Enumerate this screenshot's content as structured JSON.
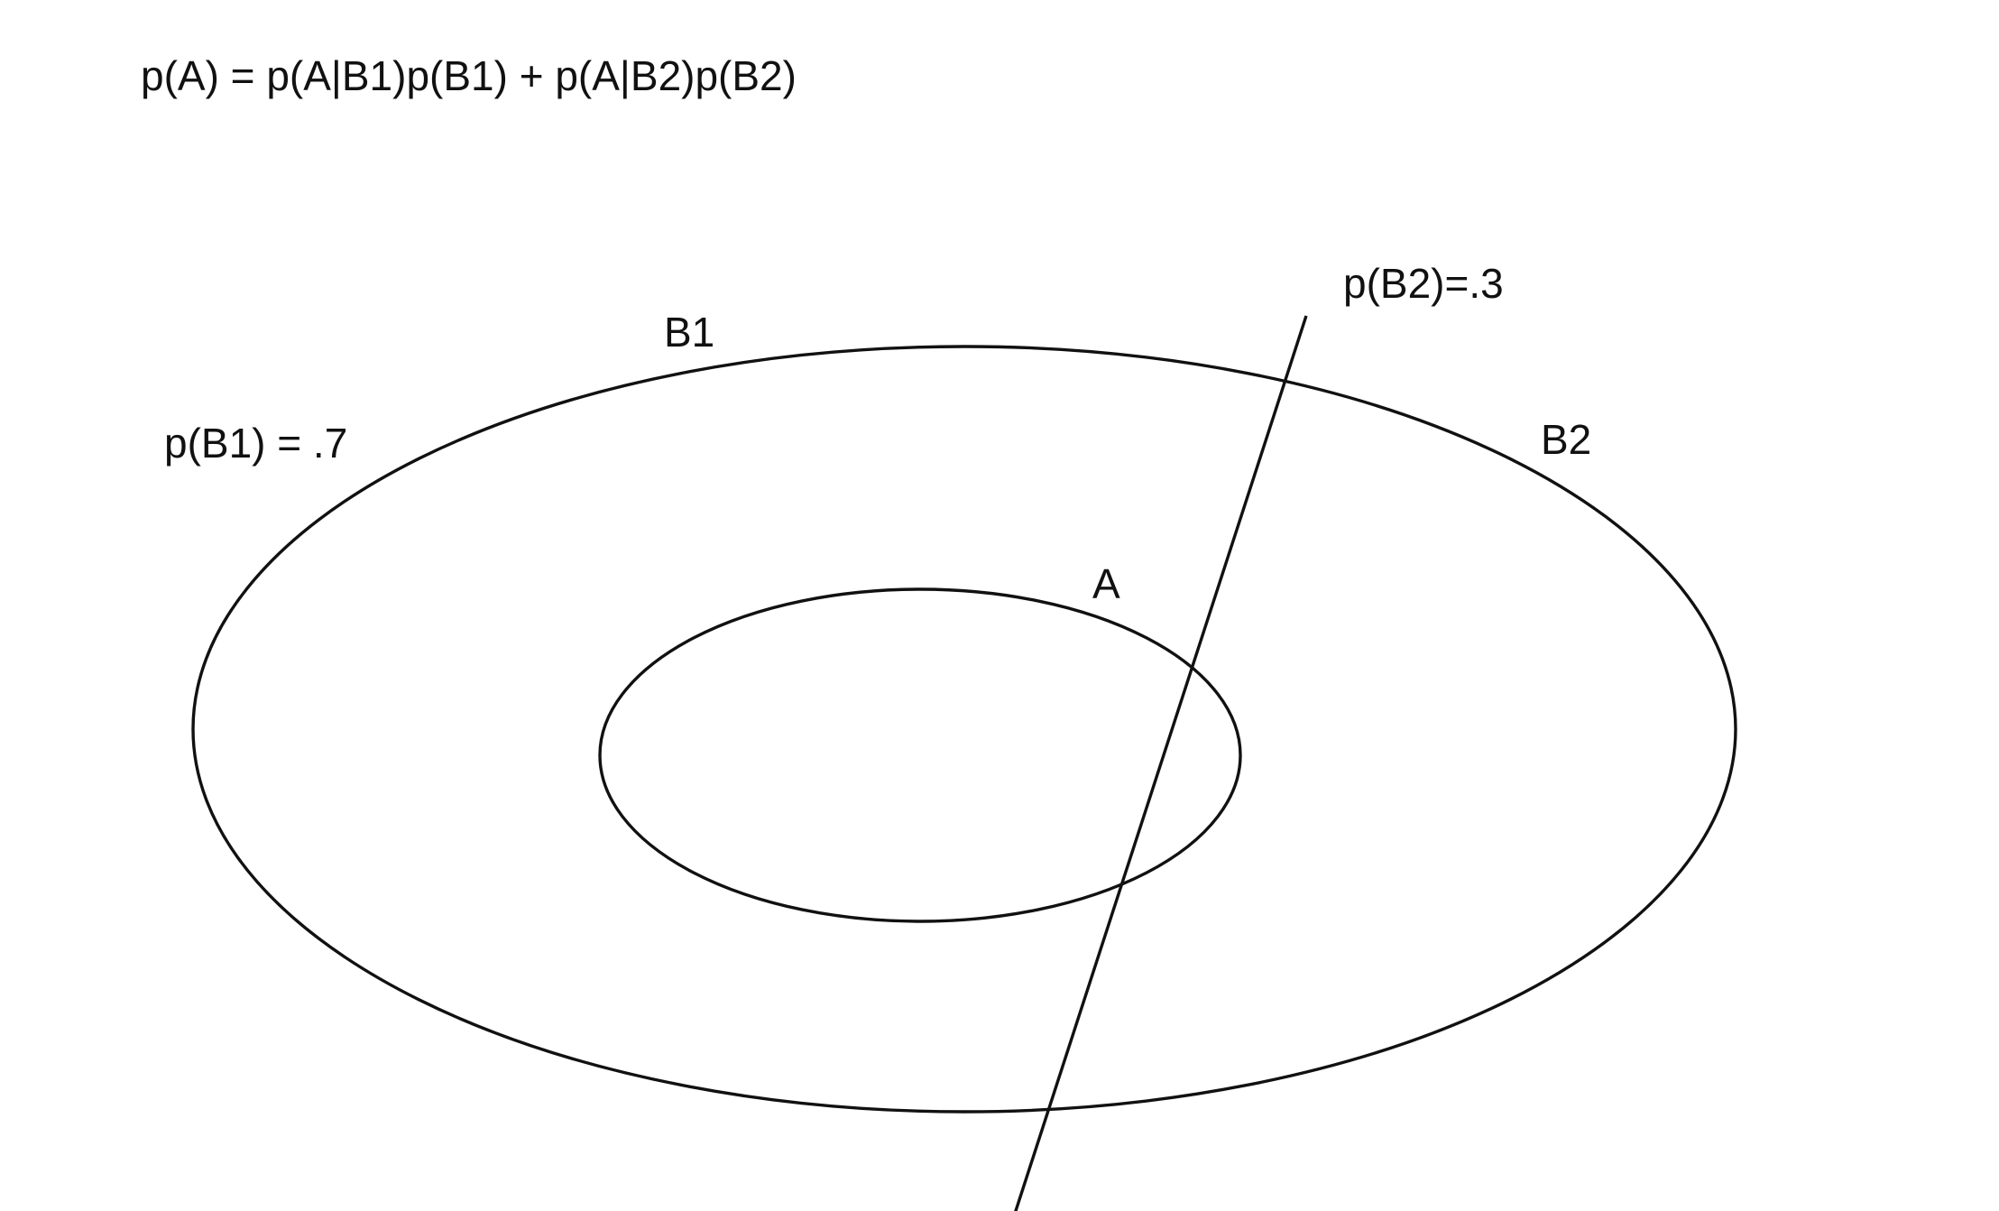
{
  "formula": "p(A) = p(A|B1)p(B1) + p(A|B2)p(B2)",
  "regions": {
    "b1": {
      "label": "B1",
      "probability_label": "p(B1) = .7",
      "probability": 0.7
    },
    "b2": {
      "label": "B2",
      "probability_label": "p(B2)=.3",
      "probability": 0.3
    },
    "a": {
      "label": "A"
    }
  },
  "colors": {
    "ink": "#111111",
    "background": "#ffffff"
  }
}
